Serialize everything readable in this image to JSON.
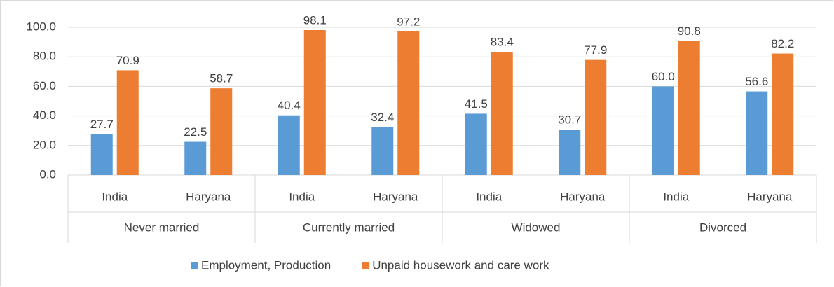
{
  "chart_data": {
    "type": "bar",
    "categories": [
      "India",
      "Haryana",
      "India",
      "Haryana",
      "India",
      "Haryana",
      "India",
      "Haryana"
    ],
    "groups": [
      "Never married",
      "Currently married",
      "Widowed",
      "Divorced"
    ],
    "series": [
      {
        "name": "Employment, Production",
        "color": "#5b9bd5",
        "values": [
          27.7,
          22.5,
          40.4,
          32.4,
          41.5,
          30.7,
          60.0,
          56.6
        ],
        "value_labels": [
          "27.7",
          "22.5",
          "40.4",
          "32.4",
          "41.5",
          "30.7",
          "60.0",
          "56.6"
        ]
      },
      {
        "name": "Unpaid housework and care work",
        "color": "#ed7d31",
        "values": [
          70.9,
          58.7,
          98.1,
          97.2,
          83.4,
          77.9,
          90.8,
          82.2
        ],
        "value_labels": [
          "70.9",
          "58.7",
          "98.1",
          "97.2",
          "83.4",
          "77.9",
          "90.8",
          "82.2"
        ]
      }
    ],
    "ylim": [
      0,
      100
    ],
    "yticks": [
      {
        "value": 0,
        "label": "0.0"
      },
      {
        "value": 20,
        "label": "20.0"
      },
      {
        "value": 40,
        "label": "40.0"
      },
      {
        "value": 60,
        "label": "60.0"
      },
      {
        "value": 80,
        "label": "80.0"
      },
      {
        "value": 100,
        "label": "100.0"
      }
    ],
    "grid": true,
    "legend": "bottom"
  }
}
